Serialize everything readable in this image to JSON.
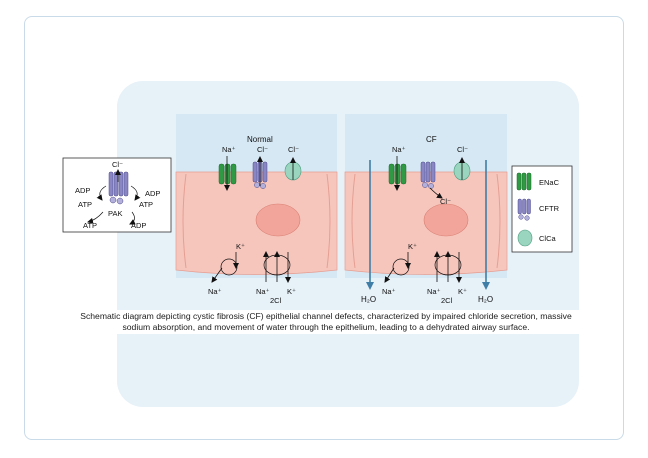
{
  "left_box": {
    "cl_label": "Cl⁻",
    "adp_left": "ADP",
    "adp_right": "ADP",
    "atp_left": "ATP",
    "atp_right": "ATP",
    "pak": "PAK",
    "atp_bottom": "ATP",
    "adp_bottom": "ADP"
  },
  "normal": {
    "title": "Normal",
    "na_top": "Na⁺",
    "cl_top_1": "Cl⁻",
    "cl_top_2": "Cl⁻",
    "k_basal": "K⁺",
    "na_basal": "Na⁺",
    "na_bottom": "Na⁺",
    "cl_bottom": "2Cl",
    "k_bottom": "K⁺"
  },
  "cf": {
    "title": "CF",
    "na_top": "Na⁺",
    "cl_top": "Cl⁻",
    "cl_inside": "Cl⁻",
    "k_basal": "K⁺",
    "na_basal": "Na⁺",
    "na_bottom": "Na⁺",
    "cl_bottom": "2Cl",
    "k_bottom": "K⁺",
    "water_left": "H₂O",
    "water_right": "H₂O"
  },
  "legend": {
    "enac": "ENaC",
    "cftr": "CFTR",
    "clca": "ClCa"
  },
  "caption": "Schematic diagram depicting cystic fibrosis (CF) epithelial channel defects, characterized by impaired chloride secretion, massive sodium absorption, and movement of water through the epithelium, leading to a dehydrated airway surface.",
  "colors": {
    "panel_bg": "#e6f1f8",
    "lumen": "#d6e8f4",
    "cell": "#f6c6bd",
    "nucleus": "#f2a59b",
    "enac": "#2f9a43",
    "cftr": "#8a86c4",
    "clca": "#9ad6bf",
    "water_arrow": "#3f7fa7"
  }
}
